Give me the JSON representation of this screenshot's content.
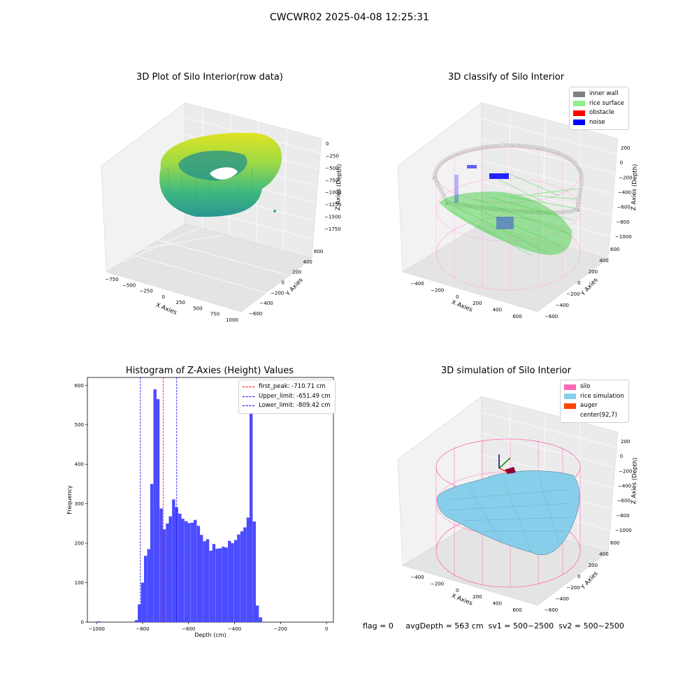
{
  "figure": {
    "suptitle": "CWCWR02 2025-04-08 12:25:31",
    "footer": "flag = 0     avgDepth = 563 cm  sv1 = 500~2500  sv2 = 500~2500"
  },
  "chart_data": [
    {
      "type": "scatter",
      "projection": "3d",
      "title": "3D Plot of Silo Interior(row data)",
      "xlabel": "X Axies",
      "ylabel": "Y Axies",
      "zlabel": "Z Axies (Depth)",
      "x_ticks": [
        "−750",
        "−500",
        "−250",
        "0",
        "250",
        "500",
        "750",
        "1000"
      ],
      "y_ticks": [
        "−600",
        "−400",
        "−200",
        "0",
        "200",
        "400",
        "600"
      ],
      "z_ticks": [
        "0",
        "−250",
        "−500",
        "−750",
        "−1000",
        "−1250",
        "−1500",
        "−1750"
      ],
      "colormap": "viridis (by depth)",
      "outlier_point": {
        "x": 950,
        "y": -150,
        "z": -1400
      }
    },
    {
      "type": "scatter",
      "projection": "3d",
      "title": "3D classify of Silo Interior",
      "xlabel": "X Axies",
      "ylabel": "Y Axies",
      "zlabel": "Z Axies (Depth)",
      "x_ticks": [
        "−400",
        "−200",
        "0",
        "200",
        "400",
        "600"
      ],
      "y_ticks": [
        "−600",
        "−400",
        "−200",
        "0",
        "200",
        "400",
        "600"
      ],
      "z_ticks": [
        "200",
        "0",
        "−200",
        "−400",
        "−600",
        "−800",
        "−1000"
      ],
      "legend": [
        {
          "label": "inner wall",
          "color": "#808080"
        },
        {
          "label": "rice surface",
          "color": "#90ee90"
        },
        {
          "label": "obstacle",
          "color": "#ff0000"
        },
        {
          "label": "noise",
          "color": "#0000ff"
        }
      ],
      "silo_wireframe_color": "#ffb6e1"
    },
    {
      "type": "bar",
      "title": "Histogram of Z-Axies (Height) Values",
      "xlabel": "Depth (cm)",
      "ylabel": "Frequency",
      "xlim": [
        -1040,
        30
      ],
      "ylim": [
        0,
        620
      ],
      "x_ticks": [
        -1000,
        -800,
        -600,
        -400,
        -200,
        0
      ],
      "y_ticks": [
        0,
        100,
        200,
        300,
        400,
        500,
        600
      ],
      "bar_color": "#4b4bff",
      "bin_width": 13.5,
      "bins": [
        {
          "x": -990,
          "y": 2
        },
        {
          "x": -827,
          "y": 5
        },
        {
          "x": -814,
          "y": 45
        },
        {
          "x": -800,
          "y": 100
        },
        {
          "x": -787,
          "y": 168
        },
        {
          "x": -773,
          "y": 185
        },
        {
          "x": -760,
          "y": 350
        },
        {
          "x": -746,
          "y": 590
        },
        {
          "x": -733,
          "y": 565
        },
        {
          "x": -719,
          "y": 288
        },
        {
          "x": -706,
          "y": 235
        },
        {
          "x": -692,
          "y": 250
        },
        {
          "x": -679,
          "y": 268
        },
        {
          "x": -665,
          "y": 311
        },
        {
          "x": -652,
          "y": 291
        },
        {
          "x": -638,
          "y": 275
        },
        {
          "x": -625,
          "y": 262
        },
        {
          "x": -611,
          "y": 256
        },
        {
          "x": -598,
          "y": 251
        },
        {
          "x": -584,
          "y": 252
        },
        {
          "x": -571,
          "y": 259
        },
        {
          "x": -557,
          "y": 244
        },
        {
          "x": -544,
          "y": 221
        },
        {
          "x": -530,
          "y": 205
        },
        {
          "x": -517,
          "y": 210
        },
        {
          "x": -503,
          "y": 181
        },
        {
          "x": -490,
          "y": 198
        },
        {
          "x": -476,
          "y": 186
        },
        {
          "x": -463,
          "y": 187
        },
        {
          "x": -449,
          "y": 191
        },
        {
          "x": -436,
          "y": 189
        },
        {
          "x": -422,
          "y": 206
        },
        {
          "x": -409,
          "y": 200
        },
        {
          "x": -395,
          "y": 208
        },
        {
          "x": -382,
          "y": 222
        },
        {
          "x": -368,
          "y": 230
        },
        {
          "x": -355,
          "y": 240
        },
        {
          "x": -341,
          "y": 265
        },
        {
          "x": -328,
          "y": 545
        },
        {
          "x": -314,
          "y": 255
        },
        {
          "x": -301,
          "y": 42
        },
        {
          "x": -287,
          "y": 12
        }
      ],
      "vlines": [
        {
          "label": "first_peak: -710.71 cm",
          "x": -710.71,
          "color": "#ff0000"
        },
        {
          "label": "Upper_limit: -651.49 cm",
          "x": -651.49,
          "color": "#0000ff"
        },
        {
          "label": "Lower_limit: -809.42 cm",
          "x": -809.42,
          "color": "#0000ff"
        }
      ]
    },
    {
      "type": "surface",
      "projection": "3d",
      "title": "3D simulation of Silo Interior",
      "xlabel": "X Axies",
      "ylabel": "Y Axies",
      "zlabel": "Z Axies (Depth)",
      "x_ticks": [
        "−400",
        "−200",
        "0",
        "200",
        "400",
        "600"
      ],
      "y_ticks": [
        "−600",
        "−400",
        "−200",
        "0",
        "200",
        "400",
        "600"
      ],
      "z_ticks": [
        "200",
        "0",
        "−200",
        "−400",
        "−600",
        "−800",
        "−1000"
      ],
      "legend": [
        {
          "label": "silo",
          "color": "#ff69b4"
        },
        {
          "label": "rice simulation",
          "color": "#87ceeb"
        },
        {
          "label": "auger",
          "color": "#ff4500"
        },
        {
          "label": "center(92,7)",
          "color": "#ffffff"
        }
      ]
    }
  ]
}
